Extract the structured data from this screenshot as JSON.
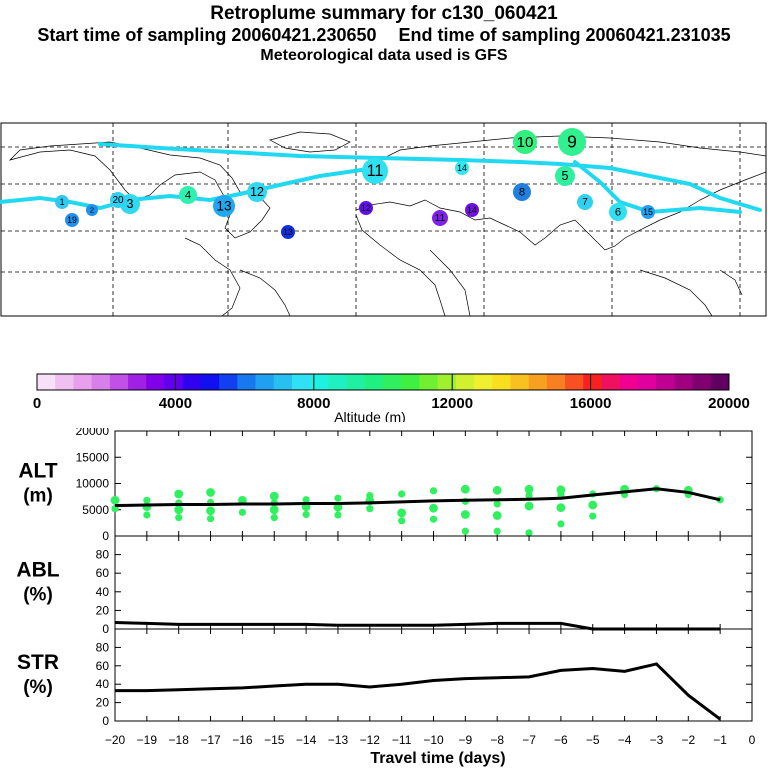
{
  "header": {
    "title": "Retroplume summary for c130_060421",
    "start_label": "Start time of sampling 20060421.230650",
    "end_label": "End time of sampling 20060421.231035",
    "met_label": "Meteorological data used is GFS"
  },
  "colorbar": {
    "label": "Altitude (m)",
    "ticks": [
      0,
      4000,
      8000,
      12000,
      16000,
      20000
    ],
    "colors": [
      "#f8e0f8",
      "#f0c0f0",
      "#e8a0ee",
      "#d880ea",
      "#c050e6",
      "#a020e6",
      "#8000e8",
      "#6000ee",
      "#3000f0",
      "#1010f0",
      "#1040f0",
      "#1878f0",
      "#20a0f0",
      "#28c0f0",
      "#30e0f4",
      "#20f0e0",
      "#20f0c0",
      "#20f0a0",
      "#20f080",
      "#30f060",
      "#40f040",
      "#70f030",
      "#a0f030",
      "#d0f030",
      "#f0f030",
      "#f8e020",
      "#f8c020",
      "#f8a020",
      "#f88020",
      "#f85020",
      "#f82020",
      "#f01060",
      "#f00090",
      "#e000a0",
      "#c00090",
      "#a00080",
      "#800070",
      "#600060"
    ]
  },
  "map": {
    "plume_labels": [
      {
        "d": "1",
        "c": "#30c8f0"
      },
      {
        "d": "2",
        "c": "#2090e8"
      },
      {
        "d": "3",
        "c": "#30d8f0"
      },
      {
        "d": "4",
        "c": "#30f0b0"
      },
      {
        "d": "5",
        "c": "#30f0a0"
      },
      {
        "d": "6",
        "c": "#30e0f0"
      },
      {
        "d": "7",
        "c": "#30d0f0"
      },
      {
        "d": "8",
        "c": "#2080e0"
      },
      {
        "d": "9",
        "c": "#30f090"
      },
      {
        "d": "10",
        "c": "#30f080"
      },
      {
        "d": "11",
        "c": "#30e0f0"
      },
      {
        "d": "12",
        "c": "#30d8f0"
      },
      {
        "d": "13",
        "c": "#20a8f0"
      },
      {
        "d": "14",
        "c": "#30e8f0"
      },
      {
        "d": "15",
        "c": "#20a0f0"
      },
      {
        "d": "19",
        "c": "#2090f0"
      },
      {
        "d": "20",
        "c": "#30d0f0"
      },
      {
        "d": "11",
        "c": "#8020e8"
      },
      {
        "d": "12",
        "c": "#6010e8"
      },
      {
        "d": "13",
        "c": "#1030e0"
      },
      {
        "d": "14",
        "c": "#7010e0"
      }
    ]
  },
  "chart_data": [
    {
      "type": "scatter",
      "panel": "ALT",
      "ylabel": "ALT (m)",
      "ylim": [
        0,
        20000
      ],
      "yticks": [
        0,
        5000,
        10000,
        15000,
        20000
      ],
      "xlim": [
        -20,
        0
      ],
      "x": [
        -20,
        -19,
        -18,
        -17,
        -16,
        -15,
        -14,
        -13,
        -12,
        -11,
        -10,
        -9,
        -8,
        -7,
        -6,
        -5,
        -4,
        -3,
        -2,
        -1
      ],
      "median_line": [
        5800,
        5900,
        6000,
        6000,
        6100,
        6100,
        6200,
        6200,
        6300,
        6500,
        6700,
        6800,
        6900,
        7000,
        7200,
        7800,
        8400,
        9000,
        8300,
        6900
      ],
      "points": [
        {
          "x": -20,
          "ys": [
            5200,
            6800
          ]
        },
        {
          "x": -19,
          "ys": [
            4000,
            5600,
            6800
          ]
        },
        {
          "x": -18,
          "ys": [
            3500,
            5000,
            6300,
            8000
          ]
        },
        {
          "x": -17,
          "ys": [
            3300,
            4800,
            6400,
            8300
          ]
        },
        {
          "x": -16,
          "ys": [
            4500,
            6800
          ]
        },
        {
          "x": -15,
          "ys": [
            3500,
            5000,
            6300,
            7600
          ]
        },
        {
          "x": -14,
          "ys": [
            4100,
            5600,
            6900
          ]
        },
        {
          "x": -13,
          "ys": [
            4000,
            5500,
            7200
          ]
        },
        {
          "x": -12,
          "ys": [
            5200,
            6700,
            7700
          ]
        },
        {
          "x": -11,
          "ys": [
            2900,
            4400,
            8000
          ]
        },
        {
          "x": -10,
          "ys": [
            3200,
            5300,
            8600
          ]
        },
        {
          "x": -9,
          "ys": [
            900,
            4100,
            6600,
            8900
          ]
        },
        {
          "x": -8,
          "ys": [
            900,
            3900,
            6100,
            8700
          ]
        },
        {
          "x": -7,
          "ys": [
            600,
            5700,
            7700,
            8900
          ]
        },
        {
          "x": -6,
          "ys": [
            2300,
            5400,
            7800,
            8800
          ]
        },
        {
          "x": -5,
          "ys": [
            3800,
            5900,
            8000
          ]
        },
        {
          "x": -4,
          "ys": [
            7900,
            8900
          ]
        },
        {
          "x": -3,
          "ys": [
            9000
          ]
        },
        {
          "x": -2,
          "ys": [
            7900,
            8700
          ]
        },
        {
          "x": -1,
          "ys": [
            6900
          ]
        }
      ],
      "point_color": "#30f060"
    },
    {
      "type": "line",
      "panel": "ABL",
      "ylabel": "ABL (%)",
      "ylim": [
        0,
        100
      ],
      "yticks": [
        0,
        20,
        40,
        60,
        80
      ],
      "x": [
        -20,
        -19,
        -18,
        -17,
        -16,
        -15,
        -14,
        -13,
        -12,
        -11,
        -10,
        -9,
        -8,
        -7,
        -6,
        -5,
        -4,
        -3,
        -2,
        -1
      ],
      "values": [
        7,
        6,
        5,
        5,
        5,
        5,
        5,
        4,
        4,
        4,
        4,
        5,
        6,
        6,
        6,
        0,
        0,
        0,
        0,
        0
      ]
    },
    {
      "type": "line",
      "panel": "STR",
      "ylabel": "STR (%)",
      "ylim": [
        0,
        100
      ],
      "yticks": [
        0,
        20,
        40,
        60,
        80
      ],
      "xlabel": "Travel time (days)",
      "xticks": [
        -20,
        -19,
        -18,
        -17,
        -16,
        -15,
        -14,
        -13,
        -12,
        -11,
        -10,
        -9,
        -8,
        -7,
        -6,
        -5,
        -4,
        -3,
        -2,
        -1,
        0
      ],
      "xtick_labels": [
        "−20",
        "−19",
        "−18",
        "−17",
        "−16",
        "−15",
        "−14",
        "−13",
        "−12",
        "−11",
        "−10",
        "−9",
        "−8",
        "−7",
        "−6",
        "−5",
        "−4",
        "−3",
        "−2",
        "−1",
        "0"
      ],
      "x": [
        -20,
        -19,
        -18,
        -17,
        -16,
        -15,
        -14,
        -13,
        -12,
        -11,
        -10,
        -9,
        -8,
        -7,
        -6,
        -5,
        -4,
        -3,
        -2,
        -1
      ],
      "values": [
        33,
        33,
        34,
        35,
        36,
        38,
        40,
        40,
        37,
        40,
        44,
        46,
        47,
        48,
        55,
        57,
        54,
        62,
        28,
        2
      ]
    }
  ]
}
